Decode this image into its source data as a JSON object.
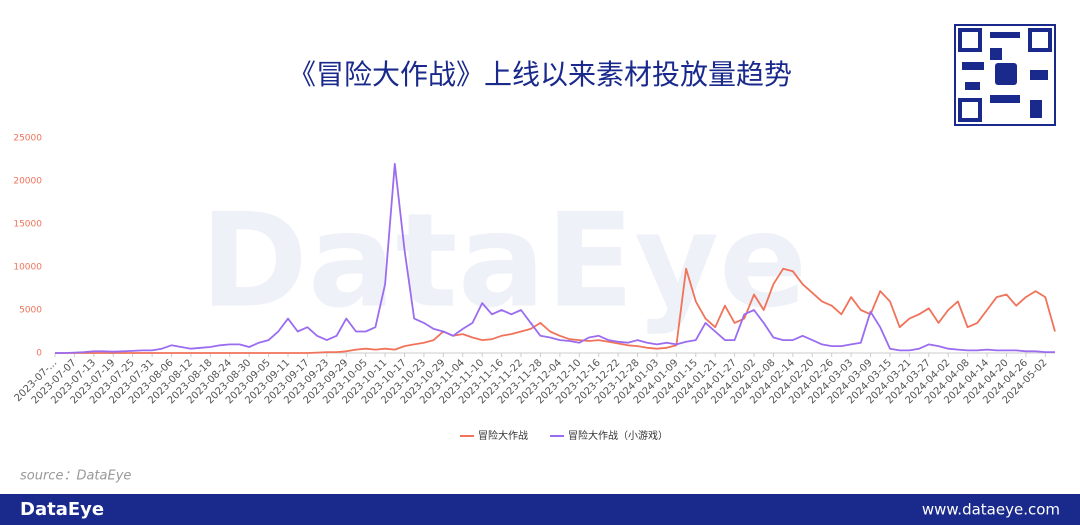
{
  "chart_data": {
    "type": "line",
    "title": "《冒险大作战》上线以来素材投放量趋势",
    "watermark": "DataEye",
    "source": "source：DataEye",
    "footer_logo": "DataEye",
    "footer_url": "www.dataeye.com",
    "ylim": [
      0,
      25000
    ],
    "yticks": [
      0,
      5000,
      10000,
      15000,
      20000,
      25000
    ],
    "grid": false,
    "categories": [
      "2023-07-...",
      null,
      "2023-07-07",
      null,
      "2023-07-13",
      null,
      "2023-07-19",
      null,
      "2023-07-25",
      null,
      "2023-07-31",
      null,
      "2023-08-06",
      null,
      "2023-08-12",
      null,
      "2023-08-18",
      null,
      "2023-08-24",
      null,
      "2023-08-30",
      null,
      "2023-09-05",
      null,
      "2023-09-11",
      null,
      "2023-09-17",
      null,
      "2023-09-23",
      null,
      "2023-09-29",
      null,
      "2023-10-05",
      null,
      "2023-10-11",
      null,
      "2023-10-17",
      null,
      "2023-10-23",
      null,
      "2023-10-29",
      null,
      "2023-11-04",
      null,
      "2023-11-10",
      null,
      "2023-11-16",
      null,
      "2023-11-22",
      null,
      "2023-11-28",
      null,
      "2023-12-04",
      null,
      "2023-12-10",
      null,
      "2023-12-16",
      null,
      "2023-12-22",
      null,
      "2023-12-28",
      null,
      "2024-01-03",
      null,
      "2024-01-09",
      null,
      "2024-01-15",
      null,
      "2024-01-21",
      null,
      "2024-01-27",
      null,
      "2024-02-02",
      null,
      "2024-02-08",
      null,
      "2024-02-14",
      null,
      "2024-02-20",
      null,
      "2024-02-26",
      null,
      "2024-03-03",
      null,
      "2024-03-09",
      null,
      "2024-03-15",
      null,
      "2024-03-21",
      null,
      "2024-03-27",
      null,
      "2024-04-02",
      null,
      "2024-04-08",
      null,
      "2024-04-14",
      null,
      "2024-04-20",
      null,
      "2024-04-26",
      null,
      "2024-05-02",
      null
    ],
    "series": [
      {
        "name": "冒险大作战",
        "color": "#f0735a",
        "values": [
          0,
          0,
          0,
          0,
          0,
          0,
          0,
          0,
          0,
          0,
          0,
          0,
          0,
          0,
          0,
          0,
          0,
          0,
          0,
          0,
          0,
          0,
          0,
          0,
          0,
          0,
          0,
          50,
          100,
          100,
          200,
          400,
          500,
          400,
          500,
          400,
          800,
          1000,
          1200,
          1500,
          2500,
          2000,
          2200,
          1800,
          1500,
          1600,
          2000,
          2200,
          2500,
          2800,
          3500,
          2500,
          2000,
          1600,
          1500,
          1400,
          1500,
          1300,
          1100,
          900,
          800,
          600,
          500,
          600,
          900,
          9800,
          6000,
          4000,
          3000,
          5500,
          3500,
          4000,
          6800,
          5000,
          8000,
          9800,
          9500,
          8000,
          7000,
          6000,
          5500,
          4500,
          6500,
          5000,
          4500,
          7200,
          6000,
          3000,
          4000,
          4500,
          5200,
          3500,
          5000,
          6000,
          3000,
          3500,
          5000,
          6500,
          6800,
          5500,
          6500,
          7200,
          6500,
          2500
        ]
      },
      {
        "name": "冒险大作战（小游戏）",
        "color": "#9b6cf0",
        "values": [
          0,
          0,
          50,
          100,
          200,
          200,
          150,
          200,
          250,
          300,
          300,
          500,
          900,
          700,
          500,
          600,
          700,
          900,
          1000,
          1000,
          700,
          1200,
          1500,
          2500,
          4000,
          2500,
          3000,
          2000,
          1500,
          2000,
          4000,
          2500,
          2500,
          3000,
          8000,
          22000,
          12000,
          4000,
          3500,
          2800,
          2500,
          2000,
          2800,
          3500,
          5800,
          4500,
          5000,
          4500,
          5000,
          3500,
          2000,
          1800,
          1500,
          1400,
          1200,
          1800,
          2000,
          1500,
          1300,
          1200,
          1500,
          1200,
          1000,
          1200,
          1000,
          1300,
          1500,
          3500,
          2500,
          1500,
          1500,
          4500,
          5000,
          3500,
          1800,
          1500,
          1500,
          2000,
          1500,
          1000,
          800,
          800,
          1000,
          1200,
          4800,
          3000,
          500,
          300,
          300,
          500,
          1000,
          800,
          500,
          400,
          300,
          300,
          400,
          300,
          300,
          300,
          200,
          200,
          100,
          100
        ]
      }
    ]
  }
}
